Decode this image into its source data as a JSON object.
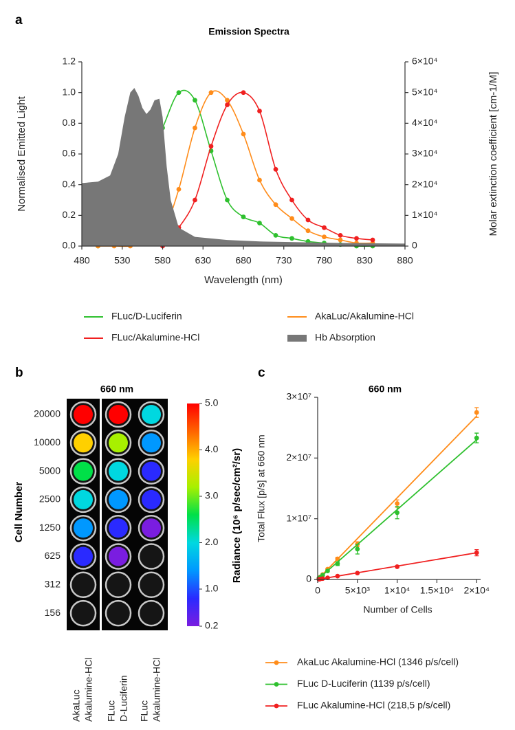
{
  "chart_data": [
    {
      "type": "line",
      "panel": "a",
      "title": "Emission Spectra",
      "x_label": "Wavelength (nm)",
      "y_label": "Normalised Emitted Light",
      "y2_label": "Molar extinction coefficient  [cm-1/M]",
      "xlim": [
        480,
        880
      ],
      "xticks": [
        480,
        530,
        580,
        630,
        680,
        730,
        780,
        830,
        880
      ],
      "ylim": [
        0,
        1.2
      ],
      "yticks": [
        {
          "value": 0,
          "label": "0.0"
        },
        0.2,
        0.4,
        0.6,
        0.8,
        {
          "value": 1,
          "label": "1.0"
        },
        1.2
      ],
      "y2lim": [
        0,
        60000
      ],
      "y2ticks": [
        0,
        {
          "value": 10000,
          "label": "1×10⁴"
        },
        {
          "value": 20000,
          "label": "2×10⁴"
        },
        {
          "value": 30000,
          "label": "3×10⁴"
        },
        {
          "value": 40000,
          "label": "4×10⁴"
        },
        {
          "value": 50000,
          "label": "5×10⁴"
        },
        {
          "value": 60000,
          "label": "6×10⁴"
        }
      ],
      "series": [
        {
          "name": "FLuc/D-Luciferin",
          "color": "#2ec02e",
          "markers": true,
          "x": [
            500,
            520,
            540,
            560,
            580,
            600,
            620,
            640,
            660,
            680,
            700,
            720,
            740,
            760,
            780,
            800,
            820,
            840
          ],
          "values": [
            0.0,
            0.11,
            0.36,
            0.53,
            0.77,
            1.0,
            0.95,
            0.62,
            0.3,
            0.19,
            0.15,
            0.07,
            0.05,
            0.03,
            0.02,
            0.01,
            0.0,
            0.0
          ]
        },
        {
          "name": "AkaLuc/Akalumine-HCl",
          "color": "#ff8c1a",
          "markers": true,
          "x": [
            500,
            520,
            540,
            560,
            580,
            600,
            620,
            640,
            660,
            680,
            700,
            720,
            740,
            760,
            780,
            800,
            820,
            840
          ],
          "values": [
            0.0,
            0.0,
            0.0,
            0.02,
            0.08,
            0.37,
            0.77,
            1.0,
            0.95,
            0.73,
            0.43,
            0.27,
            0.18,
            0.1,
            0.06,
            0.04,
            0.02,
            0.02
          ]
        },
        {
          "name": "FLuc/Akalumine-HCl",
          "color": "#f02020",
          "markers": true,
          "x": [
            580,
            600,
            620,
            640,
            660,
            680,
            700,
            720,
            740,
            760,
            780,
            800,
            820,
            840
          ],
          "values": [
            0.0,
            0.12,
            0.3,
            0.65,
            0.92,
            1.0,
            0.88,
            0.5,
            0.3,
            0.17,
            0.12,
            0.07,
            0.05,
            0.04
          ]
        },
        {
          "name": "Hb Absorption",
          "color": "#777777",
          "area": true,
          "axis": "y2",
          "x": [
            480,
            500,
            515,
            525,
            533,
            540,
            545,
            550,
            555,
            560,
            565,
            570,
            576,
            580,
            585,
            590,
            600,
            620,
            660,
            700,
            800,
            880
          ],
          "values": [
            20500,
            21000,
            23000,
            30000,
            42000,
            50000,
            51500,
            49000,
            45000,
            43000,
            44500,
            47500,
            48000,
            42000,
            26000,
            15000,
            6000,
            3000,
            2000,
            1500,
            1000,
            800
          ]
        }
      ]
    },
    {
      "type": "heatmap",
      "panel": "b",
      "title": "660 nm",
      "y_label": "Cell Number",
      "rows": [
        "20000",
        "10000",
        "5000",
        "2500",
        "1250",
        "625",
        "312",
        "156"
      ],
      "columns": [
        [
          "AkaLuc",
          "Akalumine-HCl"
        ],
        [
          "FLuc",
          "D-Luciferin"
        ],
        [
          "FLuc",
          "Akalumine-HCl"
        ]
      ],
      "values": [
        [
          5.0,
          5.0,
          2.0
        ],
        [
          3.5,
          3.0,
          1.5
        ],
        [
          2.6,
          2.2,
          1.0
        ],
        [
          1.8,
          1.6,
          0.7
        ],
        [
          1.2,
          0.8,
          0.4
        ],
        [
          0.6,
          0.4,
          null
        ],
        [
          null,
          null,
          null
        ],
        [
          null,
          null,
          null
        ]
      ],
      "colorbar_label": "Radiance (10⁶ p/sec/cm²/sr)",
      "clim": [
        0.2,
        5.0
      ],
      "cticks": [
        {
          "value": 5,
          "label": "5.0"
        },
        {
          "value": 4,
          "label": "4.0"
        },
        {
          "value": 3,
          "label": "3.0"
        },
        {
          "value": 2,
          "label": "2.0"
        },
        {
          "value": 1,
          "label": "1.0"
        },
        0.2
      ],
      "colormap": [
        "#7a1de0",
        "#2a2aff",
        "#0098ff",
        "#00d8e0",
        "#00e048",
        "#a8f000",
        "#ffd000",
        "#ff6400",
        "#ff0000"
      ]
    },
    {
      "type": "scatter",
      "panel": "c",
      "title": "660 nm",
      "x_label": "Number of Cells",
      "y_label": "Total Flux [p/s] at 660 nm",
      "xlim": [
        0,
        20500
      ],
      "xticks": [
        0,
        {
          "value": 5000,
          "label": "5×10³"
        },
        {
          "value": 10000,
          "label": "1×10⁴"
        },
        {
          "value": 15000,
          "label": "1.5×10⁴"
        },
        {
          "value": 20000,
          "label": "2×10⁴"
        }
      ],
      "ylim": [
        0,
        30000000
      ],
      "yticks": [
        0,
        {
          "value": 10000000,
          "label": "1×10⁷"
        },
        {
          "value": 20000000,
          "label": "2×10⁷"
        },
        {
          "value": 30000000,
          "label": "3×10⁷"
        }
      ],
      "x": [
        156,
        312,
        625,
        1250,
        2500,
        5000,
        10000,
        20000
      ],
      "fit_x": [
        0,
        20000
      ],
      "series": [
        {
          "name": "AkaLuc Akalumine-HCl (1346 p/s/cell)",
          "color": "#ff8c1a",
          "values": [
            200000,
            400000,
            800000,
            1700000,
            3400000,
            5800000,
            12500000,
            27500000
          ],
          "errors": [
            50000,
            60000,
            100000,
            150000,
            250000,
            400000,
            600000,
            800000
          ],
          "fit": [
            0,
            26900000
          ]
        },
        {
          "name": "FLuc D-Luciferin (1139 p/s/cell)",
          "color": "#2ec02e",
          "values": [
            180000,
            350000,
            700000,
            1400000,
            2600000,
            5000000,
            11000000,
            23300000
          ],
          "errors": [
            50000,
            60000,
            100000,
            150000,
            300000,
            800000,
            1000000,
            800000
          ],
          "fit": [
            0,
            23000000
          ]
        },
        {
          "name": "FLuc Akalumine-HCl (218,5 p/s/cell)",
          "color": "#f02020",
          "values": [
            30000,
            70000,
            140000,
            270000,
            550000,
            1050000,
            2100000,
            4400000
          ],
          "errors": [
            10000,
            15000,
            20000,
            30000,
            50000,
            100000,
            150000,
            500000
          ],
          "fit": [
            0,
            4400000
          ]
        }
      ]
    }
  ]
}
